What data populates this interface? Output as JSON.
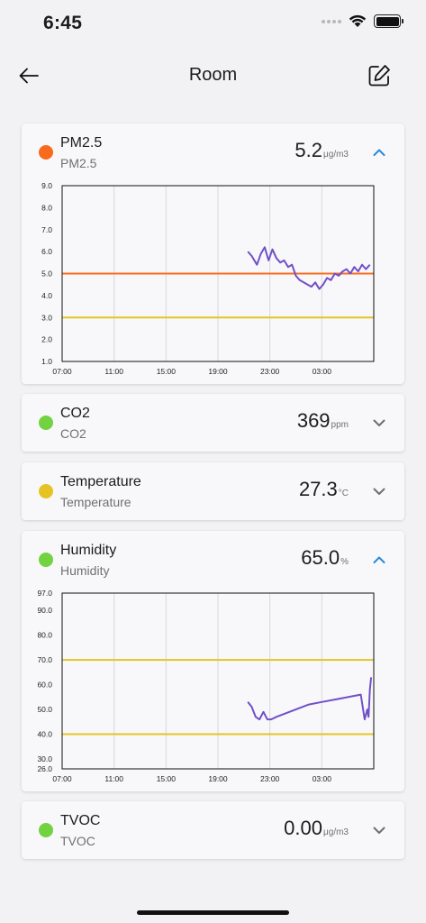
{
  "status_bar": {
    "time": "6:45"
  },
  "header": {
    "title": "Room"
  },
  "colors": {
    "orange": "#f86b1d",
    "green": "#72d23f",
    "yellow": "#e6c325",
    "purple": "#7150c8",
    "accent": "#2a8ad8"
  },
  "sensors": [
    {
      "name": "PM2.5",
      "subtitle": "PM2.5",
      "value": "5.2",
      "unit": "μg/m3",
      "status_color": "#f86b1d",
      "expanded": true,
      "chevron": "chevron-up-icon",
      "chart_data": {
        "type": "line",
        "x_tick_labels": [
          "07:00",
          "11:00",
          "15:00",
          "19:00",
          "23:00",
          "03:00"
        ],
        "y_tick_labels": [
          "1.0",
          "2.0",
          "3.0",
          "4.0",
          "5.0",
          "6.0",
          "7.0",
          "8.0",
          "9.0"
        ],
        "ylim": [
          1.0,
          9.0
        ],
        "x_hours_range": [
          7,
          31
        ],
        "threshold_lines": [
          {
            "value": 5.0,
            "color": "#f86b1d"
          },
          {
            "value": 3.0,
            "color": "#e6c325"
          }
        ],
        "series": [
          {
            "color": "#7150c8",
            "x_hours": [
              21.3,
              21.6,
              22.0,
              22.3,
              22.6,
              22.9,
              23.2,
              23.5,
              23.8,
              24.1,
              24.4,
              24.7,
              25.0,
              25.3,
              25.6,
              25.9,
              26.2,
              26.5,
              26.8,
              27.1,
              27.4,
              27.7,
              28.0,
              28.3,
              28.6,
              28.9,
              29.2,
              29.5,
              29.8,
              30.1,
              30.4,
              30.7
            ],
            "values": [
              6.0,
              5.8,
              5.4,
              5.9,
              6.2,
              5.6,
              6.1,
              5.7,
              5.5,
              5.6,
              5.3,
              5.4,
              4.9,
              4.7,
              4.6,
              4.5,
              4.4,
              4.6,
              4.3,
              4.5,
              4.8,
              4.7,
              5.0,
              4.9,
              5.1,
              5.2,
              5.0,
              5.3,
              5.1,
              5.4,
              5.2,
              5.4
            ]
          }
        ]
      }
    },
    {
      "name": "CO2",
      "subtitle": "CO2",
      "value": "369",
      "unit": "ppm",
      "status_color": "#72d23f",
      "expanded": false,
      "chevron": "chevron-down-icon"
    },
    {
      "name": "Temperature",
      "subtitle": "Temperature",
      "value": "27.3",
      "unit": "°C",
      "status_color": "#e6c325",
      "expanded": false,
      "chevron": "chevron-down-icon"
    },
    {
      "name": "Humidity",
      "subtitle": "Humidity",
      "value": "65.0",
      "unit": "%",
      "status_color": "#72d23f",
      "expanded": true,
      "chevron": "chevron-up-icon",
      "chart_data": {
        "type": "line",
        "x_tick_labels": [
          "07:00",
          "11:00",
          "15:00",
          "19:00",
          "23:00",
          "03:00"
        ],
        "y_tick_labels": [
          "26.0",
          "30.0",
          "40.0",
          "50.0",
          "60.0",
          "70.0",
          "80.0",
          "90.0",
          "97.0"
        ],
        "y_tick_values": [
          26,
          30,
          40,
          50,
          60,
          70,
          80,
          90,
          97
        ],
        "ylim": [
          26.0,
          97.0
        ],
        "x_hours_range": [
          7,
          31
        ],
        "threshold_lines": [
          {
            "value": 70.0,
            "color": "#e6c325"
          },
          {
            "value": 40.0,
            "color": "#e6c325"
          }
        ],
        "series": [
          {
            "color": "#7150c8",
            "x_hours": [
              21.3,
              21.6,
              21.9,
              22.2,
              22.5,
              22.8,
              23.1,
              23.5,
              24.0,
              25.0,
              26.0,
              27.0,
              28.0,
              29.0,
              30.0,
              30.3,
              30.5,
              30.6,
              30.7,
              30.8
            ],
            "values": [
              53,
              51,
              47,
              46,
              49,
              46,
              46,
              47,
              48,
              50,
              52,
              53,
              54,
              55,
              56,
              46,
              50,
              47,
              58,
              63
            ]
          }
        ]
      }
    },
    {
      "name": "TVOC",
      "subtitle": "TVOC",
      "value": "0.00",
      "unit": "μg/m3",
      "status_color": "#72d23f",
      "expanded": false,
      "chevron": "chevron-down-icon"
    }
  ]
}
